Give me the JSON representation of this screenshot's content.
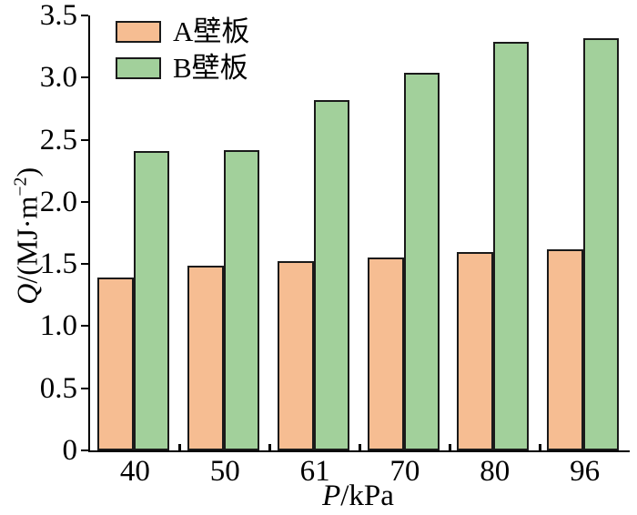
{
  "figure": {
    "background": "#ffffff",
    "axis_color": "#000000",
    "bar_border_color": "#1a1a1a"
  },
  "chart_data": {
    "type": "bar",
    "title": "",
    "categories": [
      "40",
      "50",
      "61",
      "70",
      "80",
      "96"
    ],
    "series": [
      {
        "name": "A壁板",
        "color": "#f6bd92",
        "values": [
          1.39,
          1.49,
          1.52,
          1.55,
          1.6,
          1.62
        ]
      },
      {
        "name": "B壁板",
        "color": "#a2d09b",
        "values": [
          2.41,
          2.42,
          2.82,
          3.04,
          3.29,
          3.32
        ]
      }
    ],
    "xlabel": "P/kPa",
    "ylabel": "Q/(MJ·m⁻²)",
    "xlabel_parts": {
      "var": "P",
      "rest": "/kPa"
    },
    "ylabel_parts": {
      "var": "Q",
      "pre": "/(MJ·m",
      "sup": "−2",
      "post": ")"
    },
    "ylim": [
      0,
      3.5
    ],
    "yticks": [
      0,
      0.5,
      1.0,
      1.5,
      2.0,
      2.5,
      3.0,
      3.5
    ],
    "ytick_labels": [
      "0",
      "0.5",
      "1.0",
      "1.5",
      "2.0",
      "2.5",
      "3.0",
      "3.5"
    ],
    "legend": {
      "position": "top-left",
      "items": [
        "A壁板",
        "B壁板"
      ]
    },
    "grid": false
  }
}
